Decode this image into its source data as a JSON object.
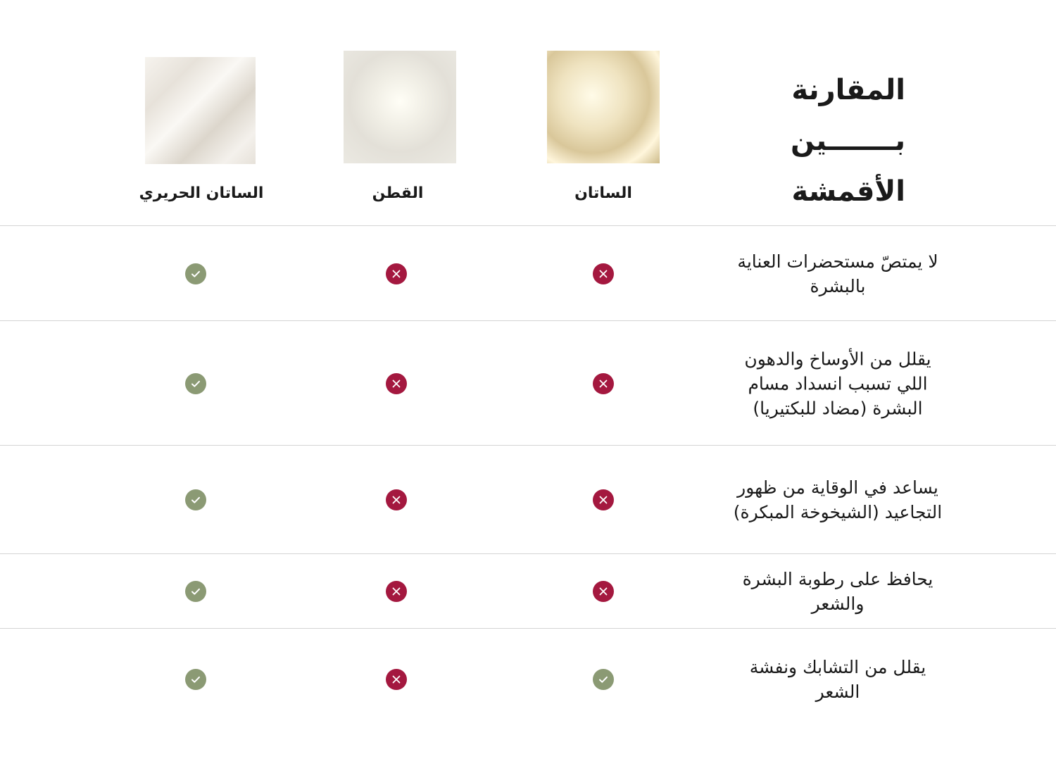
{
  "title": {
    "lines": [
      "المقارنة",
      "بـــــــين",
      "الأقمشة"
    ]
  },
  "columns": [
    {
      "label": "الساتان",
      "image": "satin-fabric-image"
    },
    {
      "label": "القطن",
      "image": "cotton-fabric-image"
    },
    {
      "label": "الساتان الحريري",
      "image": "silk-satin-fabric-image"
    }
  ],
  "colors": {
    "yes": "#8b9a74",
    "no": "#a4183f"
  },
  "rows": [
    {
      "feature": "لا يمتصّ مستحضرات العناية بالبشرة",
      "values": [
        false,
        false,
        true
      ]
    },
    {
      "feature": "يقلل من الأوساخ والدهون اللي تسبب انسداد مسام البشرة (مضاد للبكتيريا)",
      "values": [
        false,
        false,
        true
      ]
    },
    {
      "feature": "يساعد في الوقاية من ظهور التجاعيد (الشيخوخة المبكرة)",
      "values": [
        false,
        false,
        true
      ]
    },
    {
      "feature": "يحافظ على رطوبة البشرة والشعر",
      "values": [
        false,
        false,
        true
      ]
    },
    {
      "feature": "يقلل من التشابك ونفشة الشعر",
      "values": [
        true,
        false,
        true
      ]
    }
  ]
}
